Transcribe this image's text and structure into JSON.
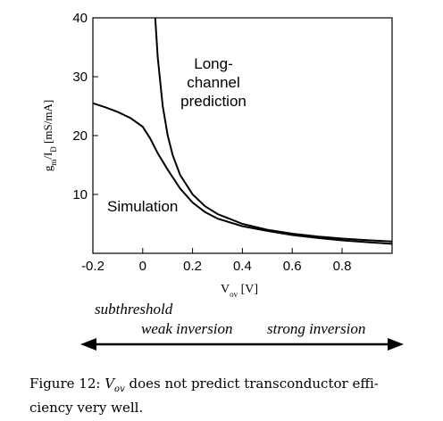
{
  "chart_data": {
    "type": "line",
    "ylabel_main": "g",
    "ylabel_sub1": "m",
    "ylabel_mid": "/I",
    "ylabel_sub2": "D",
    "ylabel_unit": " [mS/mA]",
    "xlabel_main": "V",
    "xlabel_sub": "ov",
    "xlabel_unit": " [V]",
    "xlim": [
      -0.2,
      1.0
    ],
    "ylim": [
      0,
      40
    ],
    "xticks": [
      "-0.2",
      "0",
      "0.2",
      "0.4",
      "0.6",
      "0.8"
    ],
    "yticks": [
      "10",
      "20",
      "30",
      "40"
    ],
    "annotations": {
      "longchannel_line1": "Long-",
      "longchannel_line2": "channel",
      "longchannel_line3": "prediction",
      "simulation": "Simulation"
    },
    "series": [
      {
        "name": "Long-channel prediction",
        "x": [
          0.05,
          0.06,
          0.08,
          0.1,
          0.12,
          0.15,
          0.2,
          0.25,
          0.3,
          0.4,
          0.5,
          0.6,
          0.7,
          0.8,
          0.9,
          1.0
        ],
        "y": [
          40,
          33.3,
          25,
          20,
          16.7,
          13.3,
          10,
          8,
          6.67,
          5,
          4,
          3.33,
          2.86,
          2.5,
          2.22,
          2
        ]
      },
      {
        "name": "Simulation",
        "x": [
          -0.2,
          -0.15,
          -0.1,
          -0.05,
          0.0,
          0.03,
          0.06,
          0.1,
          0.15,
          0.2,
          0.25,
          0.3,
          0.4,
          0.5,
          0.6,
          0.7,
          0.8,
          0.9,
          1.0
        ],
        "y": [
          25.5,
          24.8,
          24.0,
          23.0,
          21.5,
          19.5,
          17.0,
          14.2,
          11.0,
          8.6,
          7.0,
          5.9,
          4.6,
          3.8,
          3.1,
          2.6,
          2.2,
          1.9,
          1.6
        ]
      }
    ]
  },
  "regions": {
    "subthreshold": "subthreshold",
    "weak": "weak inversion",
    "strong": "strong inversion"
  },
  "caption": {
    "prefix": "Figure 12: ",
    "vov_main": "V",
    "vov_sub": "ov",
    "rest": " does not predict transconductor effi-",
    "line2": "ciency very well."
  }
}
